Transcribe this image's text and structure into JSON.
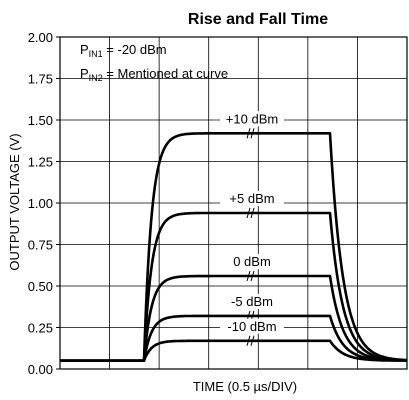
{
  "chart_data": {
    "type": "line",
    "title": "Rise and Fall Time",
    "xlabel": "TIME (0.5 µs/DIV)",
    "ylabel": "OUTPUT VOLTAGE (V)",
    "ylim": [
      0.0,
      2.0
    ],
    "yticks": [
      0.0,
      0.25,
      0.5,
      0.75,
      1.0,
      1.25,
      1.5,
      1.75,
      2.0
    ],
    "ytick_labels": [
      "0.00",
      "0.25",
      "0.50",
      "0.75",
      "1.00",
      "1.25",
      "1.50",
      "1.75",
      "2.00"
    ],
    "x_divisions": 7,
    "grid": true,
    "annotations": [
      {
        "main": "P",
        "sub": "IN1",
        "rest": " = -20 dBm"
      },
      {
        "main": "P",
        "sub": "IN2",
        "rest": " = Mentioned at curve"
      }
    ],
    "series": [
      {
        "name": "+10 dBm",
        "plateau": 1.42
      },
      {
        "name": "+5 dBm",
        "plateau": 0.94
      },
      {
        "name": "0 dBm",
        "plateau": 0.56
      },
      {
        "name": "-5 dBm",
        "plateau": 0.32
      },
      {
        "name": "-10 dBm",
        "plateau": 0.17
      }
    ],
    "baseline": 0.05
  }
}
